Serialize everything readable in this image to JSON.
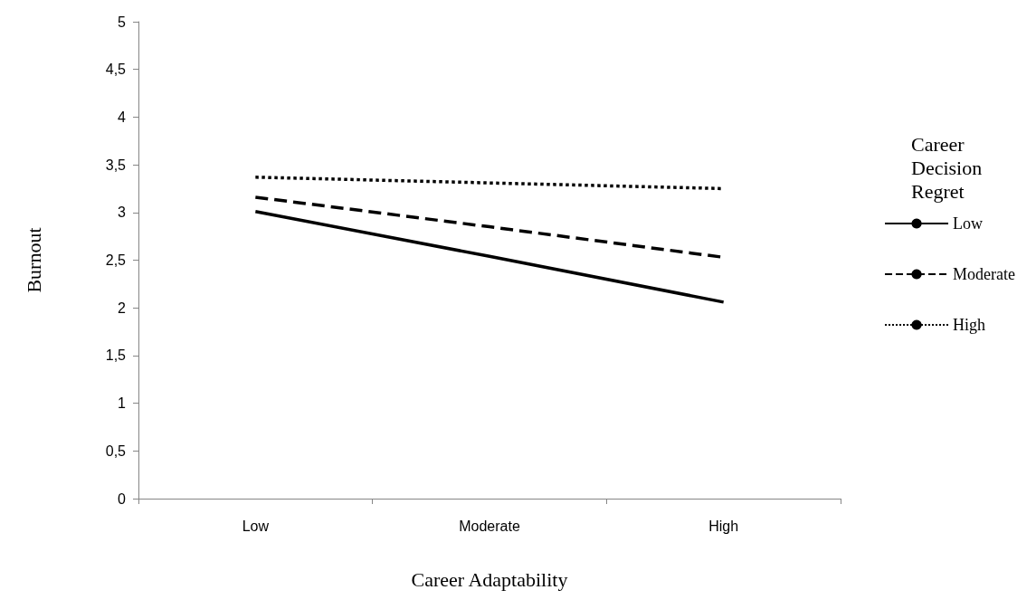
{
  "chart_data": {
    "type": "line",
    "xlabel": "Career Adaptability",
    "ylabel": "Burnout",
    "legend_title": "Career Decision Regret",
    "categories": [
      "Low",
      "Moderate",
      "High"
    ],
    "series": [
      {
        "name": "Low",
        "color": "#000000",
        "line_style": "solid",
        "values": [
          3.01,
          2.54,
          2.06
        ]
      },
      {
        "name": "Moderate",
        "color": "#000000",
        "line_style": "dashed",
        "values": [
          3.16,
          2.85,
          2.53
        ]
      },
      {
        "name": "High",
        "color": "#000000",
        "line_style": "dotted",
        "values": [
          3.37,
          3.31,
          3.25
        ]
      }
    ],
    "ylim": [
      0,
      5
    ],
    "yticks": [
      0,
      {
        "value": 0.5,
        "label": "0,5"
      },
      1,
      {
        "value": 1.5,
        "label": "1,5"
      },
      2,
      {
        "value": 2.5,
        "label": "2,5"
      },
      3,
      {
        "value": 3.5,
        "label": "3,5"
      },
      4,
      {
        "value": 4.5,
        "label": "4,5"
      },
      5
    ],
    "grid": false,
    "legend": "right",
    "marker": "none"
  }
}
